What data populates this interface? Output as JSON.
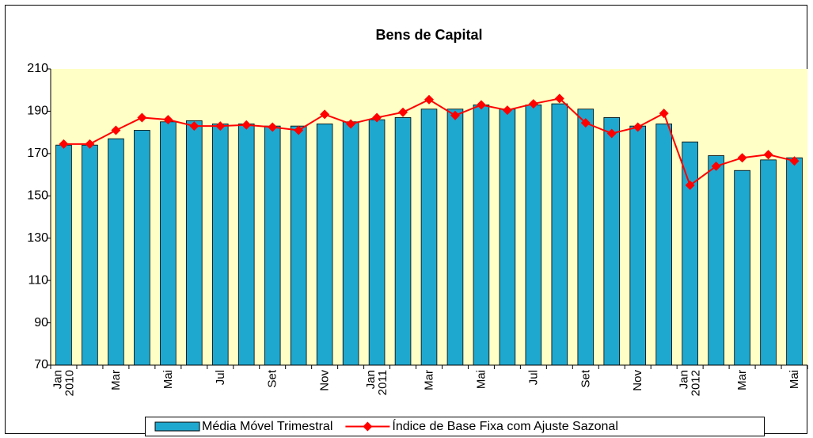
{
  "chart_data": {
    "type": "bar_line",
    "title": "Bens de Capital",
    "categories": [
      "Jan\n2010",
      null,
      "Mar",
      null,
      "Mai",
      null,
      "Jul",
      null,
      "Set",
      null,
      "Nov",
      null,
      "Jan\n2011",
      null,
      "Mar",
      null,
      "Mai",
      null,
      "Jul",
      null,
      "Set",
      null,
      "Nov",
      null,
      "Jan\n2012",
      null,
      "Mar",
      null,
      "Mai"
    ],
    "series": [
      {
        "name": "Média Móvel Trimestral",
        "type": "bar",
        "color": "#1fa8cf",
        "values": [
          174,
          174,
          177,
          181,
          185,
          185.5,
          184,
          184,
          183,
          183,
          184,
          185,
          186,
          187,
          191,
          191,
          193,
          191,
          193,
          193.5,
          191,
          187,
          183,
          184,
          175.5,
          169,
          162,
          167,
          168
        ]
      },
      {
        "name": "Índice de Base Fixa com Ajuste Sazonal",
        "type": "line",
        "color": "#ff0000",
        "values": [
          174.5,
          174.5,
          181,
          187,
          186,
          183,
          183,
          183.5,
          182.5,
          181,
          188.5,
          184,
          187,
          189.5,
          195.5,
          188,
          193,
          190.5,
          193.5,
          196,
          184.5,
          179.5,
          182.5,
          189,
          155,
          164,
          168,
          169.5,
          166.5
        ]
      }
    ],
    "ylim": [
      70,
      210
    ],
    "yticks": [
      70,
      90,
      110,
      130,
      150,
      170,
      190,
      210
    ],
    "grid": false,
    "legend": "bottom",
    "plot_background": "#ffffc6"
  }
}
